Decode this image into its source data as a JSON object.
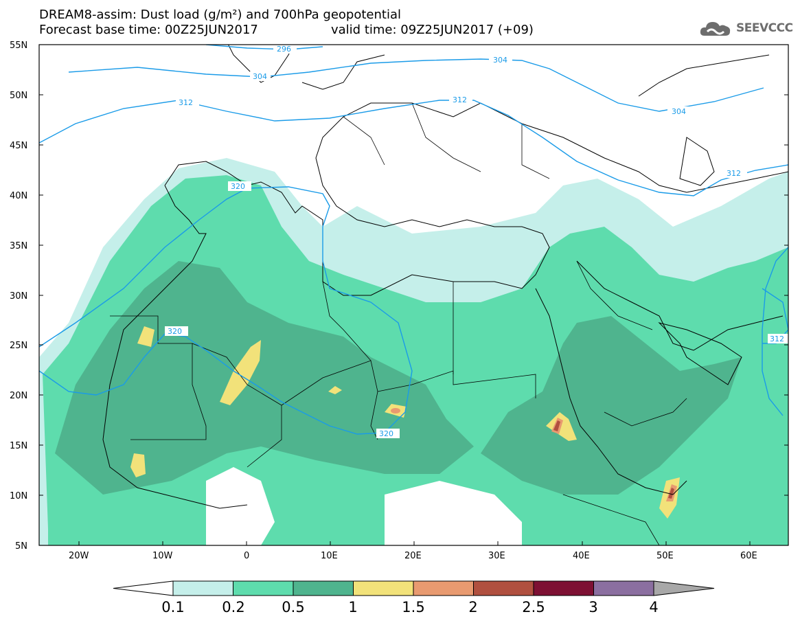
{
  "title": {
    "line1": "DREAM8-assim: Dust load (g/m²) and 700hPa geopotential",
    "line2_left": "Forecast base time: 00Z25JUN2017",
    "line2_right": "valid time: 09Z25JUN2017 (+09)"
  },
  "logo": {
    "text": "SEEVCCC",
    "icon": "cloud-icon"
  },
  "map": {
    "lat_labels": [
      "55N",
      "50N",
      "45N",
      "40N",
      "35N",
      "30N",
      "25N",
      "20N",
      "15N",
      "10N",
      "5N"
    ],
    "lon_labels": [
      "20W",
      "10W",
      "0",
      "10E",
      "20E",
      "30E",
      "40E",
      "50E",
      "60E"
    ],
    "contour_labels": [
      "296",
      "304",
      "304",
      "304",
      "312",
      "312",
      "312",
      "312",
      "320",
      "320",
      "320"
    ],
    "contour_color": "#1a9be8"
  },
  "colorbar": {
    "labels": [
      "0.1",
      "0.2",
      "0.5",
      "1",
      "1.5",
      "2",
      "2.5",
      "3",
      "4"
    ],
    "colors": [
      "#c5efea",
      "#5edcad",
      "#4fb48e",
      "#f2e27a",
      "#e89a70",
      "#b0503f",
      "#7d1033",
      "#8b6fa0"
    ],
    "over_color": "#a8a8a8",
    "under_color": "#ffffff"
  }
}
